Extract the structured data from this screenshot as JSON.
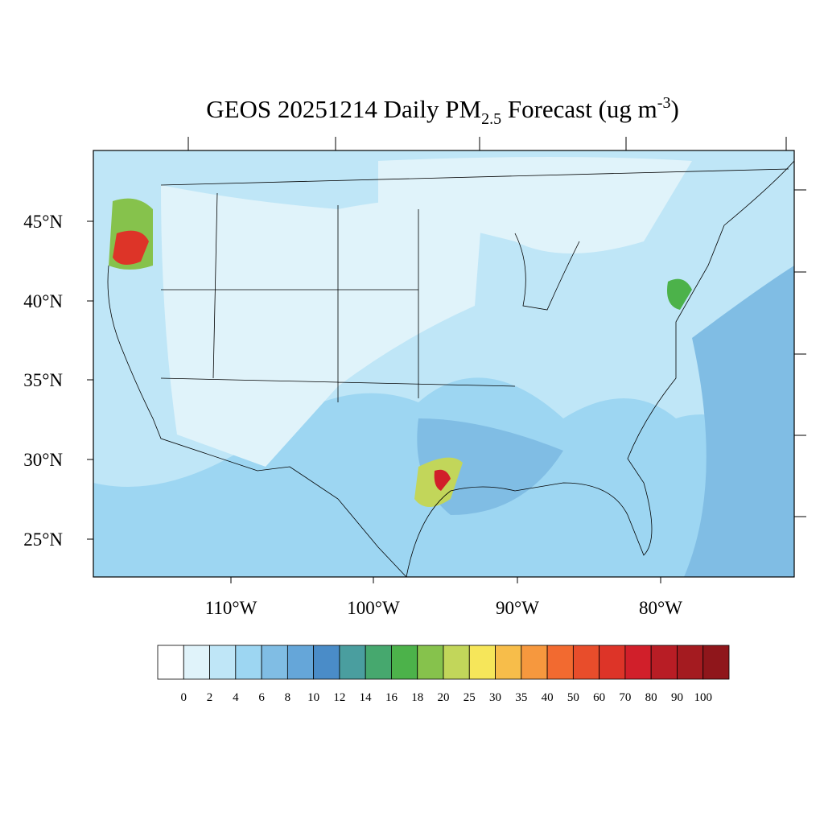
{
  "title": {
    "main": "GEOS 20251214 Daily PM",
    "subscript": "2.5",
    "after": " Forecast (ug m",
    "superscript": "-3",
    "close": ")"
  },
  "map": {
    "lat_labels": [
      "45°N",
      "40°N",
      "35°N",
      "30°N",
      "25°N"
    ],
    "lon_labels": [
      "110°W",
      "100°W",
      "90°W",
      "80°W"
    ]
  },
  "colorbar": {
    "colors": [
      "#ffffff",
      "#e0f3fa",
      "#bfe6f7",
      "#9dd6f2",
      "#80bde4",
      "#65a6d9",
      "#4a8cc8",
      "#4a9e9f",
      "#46a86e",
      "#4cb24a",
      "#86c24c",
      "#c2d65a",
      "#f6e65a",
      "#f7bd4a",
      "#f6983e",
      "#f26a30",
      "#e84d2b",
      "#dd3428",
      "#d11f2a",
      "#b81d25",
      "#a41b20",
      "#8f161b"
    ],
    "labels": [
      0,
      2,
      4,
      6,
      8,
      10,
      12,
      14,
      16,
      18,
      20,
      25,
      30,
      35,
      40,
      50,
      60,
      70,
      80,
      90,
      100
    ]
  }
}
